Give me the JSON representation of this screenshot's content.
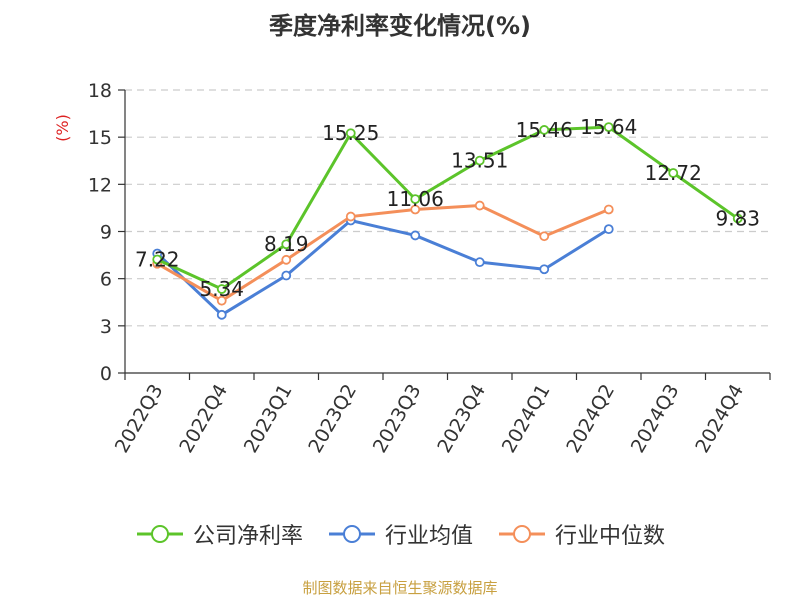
{
  "title": "季度净利率变化情况(%)",
  "source": "制图数据来自恒生聚源数据库",
  "chart_data": {
    "type": "line",
    "title": "季度净利率变化情况(%)",
    "ylabel": "(%)",
    "xlabel": "",
    "categories": [
      "2022Q3",
      "2022Q4",
      "2023Q1",
      "2023Q2",
      "2023Q3",
      "2023Q4",
      "2024Q1",
      "2024Q2",
      "2024Q3",
      "2024Q4"
    ],
    "ylim": [
      0,
      18
    ],
    "yticks": [
      0,
      3,
      6,
      9,
      12,
      15,
      18
    ],
    "grid": true,
    "legend_position": "bottom",
    "series": [
      {
        "name": "公司净利率",
        "color": "#5cc42a",
        "values": [
          7.22,
          5.34,
          8.19,
          15.25,
          11.06,
          13.51,
          15.46,
          15.64,
          12.72,
          9.83
        ],
        "labels": [
          "7.22",
          "5.34",
          "8.19",
          "15.25",
          "11.06",
          "13.51",
          "15.46",
          "15.64",
          "12.72",
          "9.83"
        ]
      },
      {
        "name": "行业均值",
        "color": "#4a7fd6",
        "values": [
          7.6,
          3.7,
          6.2,
          9.7,
          8.75,
          7.05,
          6.6,
          9.15,
          null,
          null
        ]
      },
      {
        "name": "行业中位数",
        "color": "#f48f5a",
        "values": [
          6.95,
          4.6,
          7.2,
          9.95,
          10.4,
          10.65,
          8.7,
          10.4,
          null,
          null
        ]
      }
    ]
  }
}
